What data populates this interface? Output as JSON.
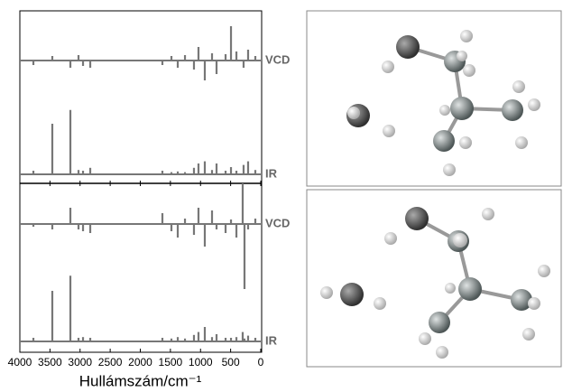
{
  "chart_data": [
    {
      "type": "stick",
      "xlim": [
        4000,
        0
      ],
      "x": [
        3775,
        3461,
        3161,
        3026,
        2951,
        2831,
        1633,
        1483,
        1378,
        1258,
        1109,
        1034,
        929,
        809,
        734,
        584,
        494,
        404,
        285,
        210,
        90
      ],
      "series": [
        {
          "name": "VCD",
          "color": "#777777",
          "ylim": [
            -1,
            1
          ],
          "values": [
            -0.1,
            0.1,
            -0.16,
            0.12,
            -0.12,
            -0.16,
            -0.1,
            0.1,
            -0.16,
            0.12,
            -0.2,
            0.3,
            -0.44,
            0.16,
            -0.3,
            0.14,
            0.76,
            0.2,
            -0.16,
            0.24,
            0.1
          ]
        },
        {
          "name": "IR",
          "color": "#777777",
          "ylim": [
            0,
            1
          ],
          "values": [
            0.05,
            0.7,
            0.89,
            0.06,
            0.05,
            0.09,
            0.05,
            0.03,
            0.04,
            0.03,
            0.09,
            0.15,
            0.18,
            0.06,
            0.15,
            0.05,
            0.1,
            0.05,
            0.13,
            0.18,
            0.06
          ]
        }
      ]
    },
    {
      "type": "stick",
      "xlim": [
        4000,
        0
      ],
      "xticks": [
        4000,
        3500,
        3000,
        2500,
        2000,
        1500,
        1000,
        500,
        0
      ],
      "xlabel": "Hullámszám/cm⁻¹",
      "x": [
        3775,
        3461,
        3161,
        3026,
        2951,
        2831,
        1633,
        1483,
        1378,
        1258,
        1109,
        1034,
        929,
        809,
        734,
        584,
        494,
        404,
        300,
        270,
        210,
        90
      ],
      "series": [
        {
          "name": "VCD",
          "color": "#777777",
          "ylim": [
            -1,
            1
          ],
          "values": [
            -0.06,
            -0.12,
            0.36,
            -0.12,
            -0.16,
            -0.2,
            0.24,
            -0.16,
            -0.3,
            0.12,
            -0.24,
            0.36,
            -0.5,
            0.3,
            -0.12,
            -0.2,
            0.1,
            -0.3,
            0.9,
            -1.44,
            -0.12,
            0.12
          ]
        },
        {
          "name": "IR",
          "color": "#777777",
          "ylim": [
            0,
            1
          ],
          "values": [
            0.05,
            0.7,
            0.91,
            0.05,
            0.06,
            0.05,
            0.05,
            0.04,
            0.06,
            0.04,
            0.09,
            0.13,
            0.2,
            0.06,
            0.1,
            0.05,
            0.05,
            0.06,
            0.13,
            0.04,
            0.08,
            0.05
          ]
        }
      ]
    }
  ]
}
